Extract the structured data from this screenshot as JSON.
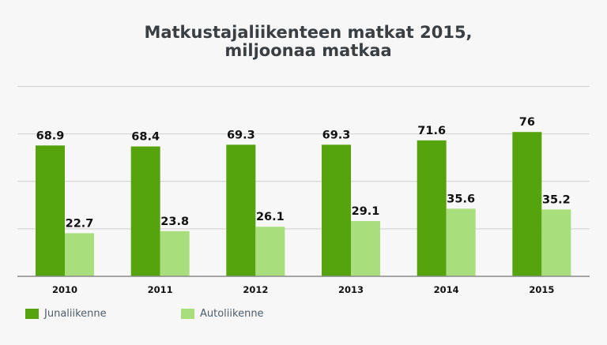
{
  "chart_data": {
    "type": "bar",
    "title": "Matkustajaliikenteen matkat 2015,",
    "subtitle": "miljoonaa matkaa",
    "xlabel": "",
    "ylabel": "",
    "categories": [
      "2010",
      "2011",
      "2012",
      "2013",
      "2014",
      "2015"
    ],
    "series": [
      {
        "name": "Junaliikenne",
        "color": "#55a30d",
        "values": [
          68.9,
          68.4,
          69.3,
          69.3,
          71.6,
          76
        ],
        "labels": [
          "68.9",
          "68.4",
          "69.3",
          "69.3",
          "71.6",
          "76"
        ]
      },
      {
        "name": "Autoliikenne",
        "color": "#a8de7c",
        "values": [
          22.7,
          23.8,
          26.1,
          29.1,
          35.6,
          35.2
        ],
        "labels": [
          "22.7",
          "23.8",
          "26.1",
          "29.1",
          "35.6",
          "35.2"
        ]
      }
    ],
    "ylim": [
      0,
      100
    ],
    "y_gridlines": [
      0,
      25,
      50,
      75,
      100
    ],
    "y_tick_labels_visible": false,
    "grid": true,
    "legend": "bottom-left"
  }
}
